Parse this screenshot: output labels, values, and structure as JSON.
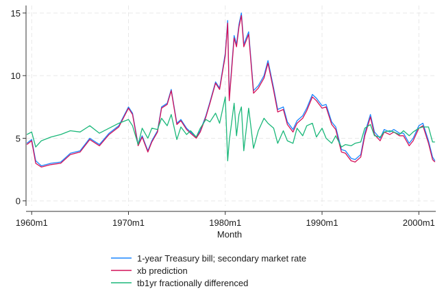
{
  "chart_data": {
    "type": "line",
    "xlabel": "Month",
    "ylabel": "",
    "xlim": [
      "1959m6",
      "2001m10"
    ],
    "ylim": [
      -0.4,
      15.6
    ],
    "xticks": [
      "1960m1",
      "1970m1",
      "1980m1",
      "1990m1",
      "2000m1"
    ],
    "yticks": [
      0,
      5,
      10,
      15
    ],
    "grid": true,
    "legend": "bottom",
    "x_dates": [
      "1959m7",
      "1960m1",
      "1960m6",
      "1961m1",
      "1962m1",
      "1963m1",
      "1964m1",
      "1965m1",
      "1966m1",
      "1967m1",
      "1968m1",
      "1969m1",
      "1970m1",
      "1970m6",
      "1971m1",
      "1971m6",
      "1972m1",
      "1972m6",
      "1973m1",
      "1973m6",
      "1974m1",
      "1974m6",
      "1975m1",
      "1975m6",
      "1976m1",
      "1976m6",
      "1977m1",
      "1977m6",
      "1978m1",
      "1978m6",
      "1979m1",
      "1979m6",
      "1980m1",
      "1980m4",
      "1980m6",
      "1980m12",
      "1981m3",
      "1981m6",
      "1981m9",
      "1981m12",
      "1982m6",
      "1982m12",
      "1983m6",
      "1984m1",
      "1984m6",
      "1985m1",
      "1985m6",
      "1986m1",
      "1986m6",
      "1987m1",
      "1987m6",
      "1988m1",
      "1988m6",
      "1989m1",
      "1989m6",
      "1990m1",
      "1990m6",
      "1991m1",
      "1991m6",
      "1992m1",
      "1992m6",
      "1993m1",
      "1993m6",
      "1994m1",
      "1994m6",
      "1995m1",
      "1995m6",
      "1996m1",
      "1996m6",
      "1997m1",
      "1997m6",
      "1998m1",
      "1998m6",
      "1999m1",
      "1999m6",
      "2000m1",
      "2000m6",
      "2001m1",
      "2001m6",
      "2001m9"
    ],
    "series": [
      {
        "name": "1-year Treasury bill; secondary market rate",
        "color": "#1a85ff",
        "values": [
          4.6,
          4.9,
          3.2,
          2.8,
          3.0,
          3.1,
          3.8,
          4.0,
          5.0,
          4.5,
          5.4,
          6.0,
          7.5,
          7.0,
          4.5,
          5.2,
          4.0,
          4.8,
          5.6,
          7.5,
          7.8,
          8.9,
          6.2,
          6.5,
          5.8,
          5.5,
          5.1,
          5.6,
          6.8,
          7.9,
          9.5,
          9.0,
          11.8,
          14.4,
          8.2,
          13.2,
          12.5,
          14.1,
          15.0,
          12.5,
          13.5,
          8.8,
          9.2,
          10.0,
          11.2,
          9.0,
          7.3,
          7.5,
          6.3,
          5.7,
          6.4,
          6.8,
          7.4,
          8.5,
          8.2,
          7.6,
          7.7,
          6.3,
          5.9,
          4.1,
          4.0,
          3.4,
          3.3,
          3.7,
          5.4,
          6.9,
          5.5,
          5.0,
          5.7,
          5.5,
          5.7,
          5.4,
          5.4,
          4.6,
          5.0,
          6.0,
          6.2,
          4.8,
          3.5,
          3.2
        ]
      },
      {
        "name": "xb prediction",
        "color": "#d41159",
        "values": [
          4.5,
          4.8,
          3.0,
          2.7,
          2.9,
          3.0,
          3.7,
          3.9,
          4.9,
          4.4,
          5.3,
          5.9,
          7.4,
          6.9,
          4.4,
          5.1,
          3.9,
          4.7,
          5.5,
          7.4,
          7.7,
          8.8,
          6.1,
          6.4,
          5.7,
          5.4,
          5.0,
          5.5,
          6.7,
          7.8,
          9.4,
          8.9,
          11.6,
          14.2,
          8.0,
          13.0,
          12.3,
          13.9,
          14.8,
          12.3,
          13.3,
          8.6,
          9.0,
          9.8,
          11.0,
          8.8,
          7.1,
          7.3,
          6.1,
          5.5,
          6.2,
          6.6,
          7.2,
          8.3,
          8.0,
          7.4,
          7.5,
          6.1,
          5.7,
          3.9,
          3.8,
          3.2,
          3.1,
          3.5,
          5.2,
          6.7,
          5.3,
          4.8,
          5.5,
          5.3,
          5.5,
          5.2,
          5.2,
          4.4,
          4.8,
          5.8,
          6.0,
          4.6,
          3.3,
          3.1
        ]
      },
      {
        "name": "tb1yr fractionally differenced",
        "color": "#1ab779",
        "values": [
          5.3,
          5.5,
          4.3,
          4.8,
          5.1,
          5.3,
          5.6,
          5.5,
          6.0,
          5.4,
          5.8,
          6.2,
          6.5,
          6.0,
          4.5,
          5.8,
          5.0,
          5.8,
          5.7,
          6.6,
          6.0,
          6.9,
          4.9,
          5.9,
          5.3,
          5.6,
          5.1,
          5.8,
          6.5,
          6.3,
          7.0,
          6.2,
          8.3,
          3.2,
          4.8,
          7.8,
          5.2,
          6.9,
          7.5,
          4.0,
          7.4,
          4.2,
          5.6,
          6.6,
          6.2,
          5.8,
          4.6,
          5.6,
          4.8,
          4.6,
          5.8,
          5.2,
          6.0,
          6.2,
          5.1,
          5.8,
          5.0,
          4.6,
          5.2,
          4.3,
          4.5,
          4.4,
          4.6,
          4.7,
          5.8,
          6.1,
          5.2,
          5.1,
          5.5,
          5.6,
          5.5,
          5.3,
          5.6,
          5.2,
          5.5,
          5.8,
          5.9,
          5.9,
          4.7,
          4.7
        ]
      }
    ]
  }
}
